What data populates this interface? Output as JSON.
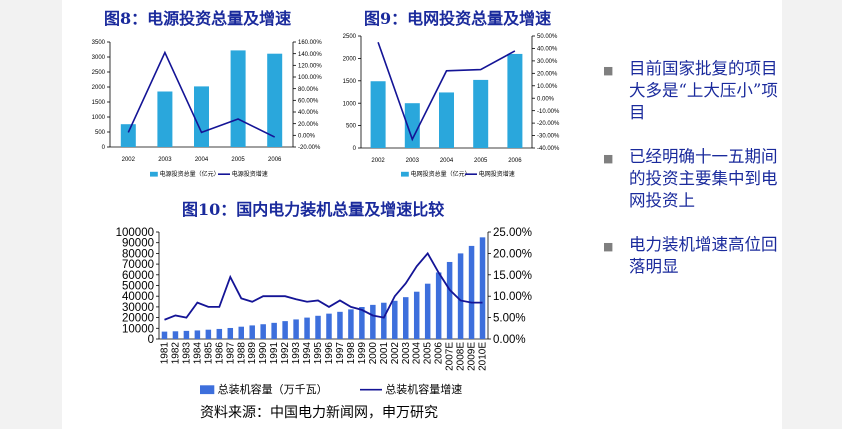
{
  "colors": {
    "bar": "#2aa7dc",
    "line": "#141496",
    "bar_big": "#3d6fdc",
    "title": "#1a2a9c"
  },
  "chart_data": [
    {
      "type": "bar",
      "title": "图8：电源投资总量及增速",
      "categories": [
        "2002",
        "2003",
        "2004",
        "2005",
        "2006"
      ],
      "series": [
        {
          "name": "电源投资总量（亿元）",
          "type": "bar",
          "axis": "left",
          "values": [
            760,
            1850,
            2020,
            3220,
            3110
          ]
        },
        {
          "name": "电源投资增速",
          "type": "line",
          "axis": "right",
          "unit": "%",
          "values": [
            5,
            142,
            5,
            28,
            -3
          ]
        }
      ],
      "y_left": {
        "min": 0,
        "max": 3500,
        "ticks": [
          "0",
          "500",
          "1000",
          "1500",
          "2000",
          "2500",
          "3000",
          "3500"
        ]
      },
      "y_right": {
        "min": -20,
        "max": 160,
        "ticks": [
          "-20.00%",
          "0.00%",
          "20.00%",
          "40.00%",
          "60.00%",
          "80.00%",
          "100.00%",
          "120.00%",
          "140.00%",
          "160.00%"
        ]
      },
      "legend_position": "bottom"
    },
    {
      "type": "bar",
      "title": "图9：电网投资总量及增速",
      "categories": [
        "2002",
        "2003",
        "2004",
        "2005",
        "2006"
      ],
      "series": [
        {
          "name": "电网投资总量（亿元）",
          "type": "bar",
          "axis": "left",
          "values": [
            1490,
            1000,
            1240,
            1520,
            2100
          ]
        },
        {
          "name": "电网投资增速",
          "type": "line",
          "axis": "right",
          "unit": "%",
          "values": [
            45,
            -33,
            22,
            23,
            38
          ]
        }
      ],
      "y_left": {
        "min": 0,
        "max": 2500,
        "ticks": [
          "0",
          "500",
          "1000",
          "1500",
          "2000",
          "2500"
        ]
      },
      "y_right": {
        "min": -40,
        "max": 50,
        "ticks": [
          "-40.00%",
          "-30.00%",
          "-20.00%",
          "-10.00%",
          "0.00%",
          "10.00%",
          "20.00%",
          "30.00%",
          "40.00%",
          "50.00%"
        ]
      },
      "legend_position": "bottom"
    },
    {
      "type": "bar",
      "title": "图10：国内电力装机总量及增速比较",
      "categories": [
        "1981",
        "1982",
        "1983",
        "1984",
        "1985",
        "1986",
        "1987",
        "1988",
        "1989",
        "1990",
        "1991",
        "1992",
        "1993",
        "1994",
        "1995",
        "1996",
        "1997",
        "1998",
        "1999",
        "2000",
        "2001",
        "2002",
        "2003",
        "2004",
        "2005",
        "2006",
        "2007E",
        "2008E",
        "2009E",
        "2010E"
      ],
      "series": [
        {
          "name": "总装机容量（万千瓦）",
          "type": "bar",
          "axis": "left",
          "values": [
            6900,
            7200,
            7600,
            8000,
            8700,
            9400,
            10300,
            11500,
            12700,
            13800,
            15100,
            16700,
            18300,
            20000,
            21700,
            23700,
            25400,
            27700,
            29900,
            31900,
            33900,
            35700,
            39100,
            44200,
            51700,
            62200,
            72000,
            80000,
            87000,
            95000
          ]
        },
        {
          "name": "总装机容量增速",
          "type": "line",
          "axis": "right",
          "unit": "%",
          "values": [
            4.5,
            5.5,
            5.0,
            8.5,
            7.5,
            7.5,
            14.5,
            9.5,
            8.7,
            10.0,
            10.0,
            10.0,
            9.3,
            8.7,
            9.0,
            7.5,
            9.0,
            7.5,
            6.8,
            5.5,
            5.0,
            10.0,
            13.0,
            17.0,
            20.0,
            15.5,
            11.5,
            9.0,
            8.5,
            8.5
          ]
        }
      ],
      "y_left": {
        "min": 0,
        "max": 100000,
        "ticks": [
          "0",
          "10000",
          "20000",
          "30000",
          "40000",
          "50000",
          "60000",
          "70000",
          "80000",
          "90000",
          "100000"
        ]
      },
      "y_right": {
        "min": 0,
        "max": 25,
        "ticks": [
          "0.00%",
          "5.00%",
          "10.00%",
          "15.00%",
          "20.00%",
          "25.00%"
        ]
      },
      "legend_position": "bottom"
    }
  ],
  "bullets": [
    {
      "text": "目前国家批复的项目大多是“上大压小”项目"
    },
    {
      "text": "已经明确十一五期间的投资主要集中到电网投资上"
    },
    {
      "text": "电力装机增速高位回落明显"
    }
  ],
  "bullet_mark": "■",
  "source": "资料来源：中国电力新闻网，申万研究"
}
